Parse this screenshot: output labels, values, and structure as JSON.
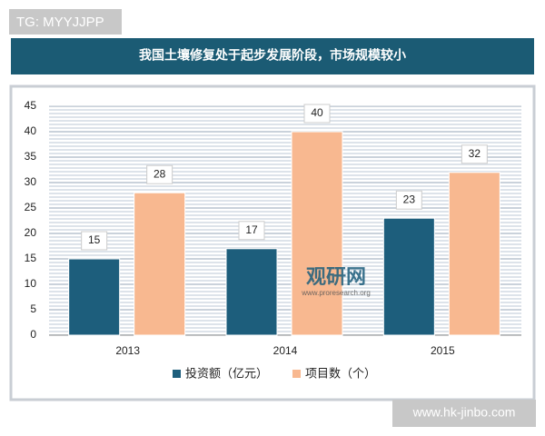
{
  "chart_data": {
    "type": "bar",
    "title": "我国土壤修复处于起步发展阶段，市场规模较小",
    "categories": [
      "2013",
      "2014",
      "2015"
    ],
    "series": [
      {
        "name": "投资额（亿元）",
        "color": "#1d5e7c",
        "values": [
          15,
          17,
          23
        ]
      },
      {
        "name": "项目数（个）",
        "color": "#f8b890",
        "values": [
          28,
          40,
          32
        ]
      }
    ],
    "ylim": [
      0,
      45
    ],
    "yticks": [
      0,
      5,
      10,
      15,
      20,
      25,
      30,
      35,
      40,
      45
    ],
    "grid": true,
    "legend": "bottom"
  },
  "watermarks": {
    "top_left": "TG: MYYJJPP",
    "bottom_right": "www.hk-jinbo.com",
    "logo": "观研网",
    "logo_url": "www.proresearch.org"
  }
}
